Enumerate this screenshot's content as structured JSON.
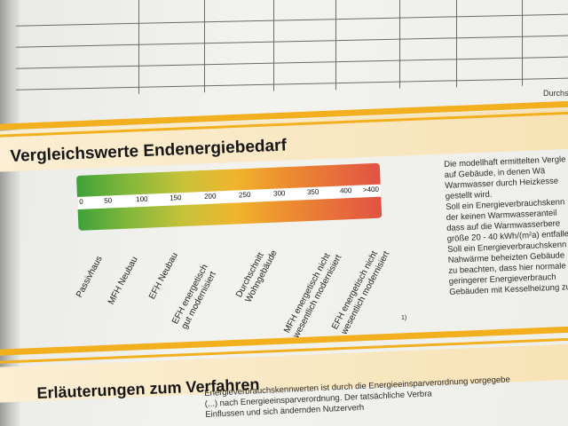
{
  "table": {
    "footer_label": "Durchsc"
  },
  "section1": {
    "title": "Vergleichswerte Endenergiebedarf"
  },
  "scale": {
    "ticks": [
      "0",
      "50",
      "100",
      "150",
      "200",
      "250",
      "300",
      "350",
      "400",
      ">400"
    ],
    "colors": {
      "low": "#3ea13a",
      "mid": "#f0b52c",
      "high": "#e25244"
    }
  },
  "categories": [
    {
      "lines": [
        "Passivhaus"
      ]
    },
    {
      "lines": [
        "MFH Neubau"
      ]
    },
    {
      "lines": [
        "EFH Neubau"
      ]
    },
    {
      "lines": [
        "EFH energetisch",
        "gut modernisiert"
      ]
    },
    {
      "lines": [
        "Durchschnitt",
        "Wohngebäude"
      ]
    },
    {
      "lines": [
        "MFH energetisch nicht",
        "wesentlich modernisiert"
      ]
    },
    {
      "lines": [
        "EFH energetisch nicht",
        "wesentlich modernisiert"
      ]
    }
  ],
  "footnote": "1)",
  "side_text": [
    "Die modellhaft ermittelten Vergle",
    "auf Gebäude, in denen Wä",
    "Warmwasser durch Heizkesse",
    "gestellt wird.",
    "Soll ein Energieverbrauchskenn",
    "der keinen Warmwasseranteil",
    "dass auf die Warmwasserbere",
    "größe 20 - 40 kWh/(m²a) entfalle",
    "Soll ein Energieverbrauchskenn",
    "Nahwärme beheizten Gebäude",
    "zu beachten, dass hier normale",
    "geringerer Energieverbrauch",
    "Gebäuden mit Kesselheizung zu"
  ],
  "section2": {
    "title": "Erläuterungen zum Verfahren"
  },
  "bottom_text": [
    "Energieverbrauchskennwerten ist durch die Energieeinsparverordnung vorgegebe",
    "(...) nach Energieeinsparverordnung. Der tatsächliche Verbra",
    "Einflussen und sich ändernden Nutzerverh"
  ]
}
